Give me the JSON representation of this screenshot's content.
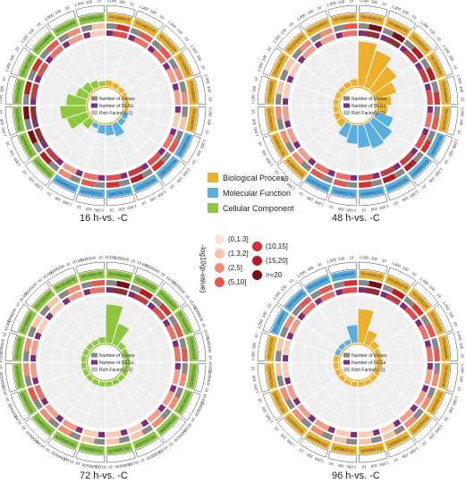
{
  "colors": {
    "biological_process": "#eeb02b",
    "molecular_function": "#5aaee0",
    "cellular_component": "#8ec63f",
    "ring_bg": "#efefef",
    "genes_bar": "#888888",
    "degs_bar": "#7a2e7d",
    "rich_bar": "#bdbdbd"
  },
  "legend": {
    "categories": [
      {
        "label": "Biological Process",
        "color": "#eeb02b"
      },
      {
        "label": "Molecular Function",
        "color": "#5aaee0"
      },
      {
        "label": "Cellular Component",
        "color": "#8ec63f"
      }
    ],
    "pvalue_title": "-log10(p-value)",
    "pvalue_bins": [
      {
        "label": "(0,1.3]",
        "color": "#fbe3d8"
      },
      {
        "label": "(1.3,2]",
        "color": "#f8c3ab"
      },
      {
        "label": "(2,5]",
        "color": "#f28b75"
      },
      {
        "label": "(5,10]",
        "color": "#e8574d"
      },
      {
        "label": "(10,15]",
        "color": "#d9302e"
      },
      {
        "label": "(15,20]",
        "color": "#b51c22"
      },
      {
        "label": ">=20",
        "color": "#7a0c12"
      }
    ]
  },
  "chart_data": [
    {
      "type": "circular-bar",
      "title": "16 h-vs. -C",
      "inner_legend": [
        "Number of Genes",
        "Number of DEGs",
        "Rich Factor(0~1)"
      ],
      "outer_tick_labels": [
        "1,000",
        "100",
        "10"
      ],
      "terms": [
        "GO:0006810",
        "GO:0051179",
        "GO:0051234",
        "GO:0006811",
        "GO:0006812",
        "GO:0030001",
        "GO:0005215",
        "GO:0022857",
        "GO:0015075",
        "GO:0022891",
        "GO:0015318",
        "GO:0008324",
        "GO:0016020",
        "GO:0044425",
        "GO:0031224",
        "GO:0016021",
        "GO:0071944",
        "GO:0005886",
        "GO:0044459",
        "GO:0005576"
      ],
      "category": [
        "BP",
        "BP",
        "BP",
        "BP",
        "BP",
        "BP",
        "MF",
        "MF",
        "MF",
        "MF",
        "MF",
        "MF",
        "CC",
        "CC",
        "CC",
        "CC",
        "CC",
        "CC",
        "CC",
        "CC"
      ],
      "rich_factor": [
        0.12,
        0.1,
        0.09,
        0.08,
        0.08,
        0.07,
        0.1,
        0.12,
        0.28,
        0.22,
        0.18,
        0.1,
        0.2,
        0.45,
        0.55,
        0.42,
        0.25,
        0.2,
        0.15,
        0.1
      ],
      "pvalue_bin": [
        4,
        3,
        3,
        2,
        2,
        1,
        3,
        4,
        5,
        4,
        3,
        2,
        5,
        6,
        6,
        5,
        4,
        3,
        2,
        1
      ]
    },
    {
      "type": "circular-bar",
      "title": "48 h-vs. -C",
      "inner_legend": [
        "Number of Genes",
        "Number of DEGs",
        "Rich Factor(0~1)"
      ],
      "outer_tick_labels": [
        "1,000",
        "100",
        "10"
      ],
      "terms": [
        "GO:0008152",
        "GO:0044710",
        "GO:0055114",
        "GO:0006091",
        "GO:0009056",
        "GO:0044248",
        "GO:0016491",
        "GO:0003824",
        "GO:0016614",
        "GO:0016616",
        "GO:0004022",
        "GO:0016829",
        "GO:0046914",
        "GO:0005975",
        "GO:0019752",
        "GO:0006082",
        "GO:0044281",
        "GO:0043436",
        "GO:0006520",
        "GO:0009058"
      ],
      "category": [
        "BP",
        "BP",
        "BP",
        "BP",
        "BP",
        "BP",
        "MF",
        "MF",
        "MF",
        "MF",
        "MF",
        "MF",
        "BP",
        "BP",
        "BP",
        "BP",
        "BP",
        "BP",
        "BP",
        "BP"
      ],
      "rich_factor": [
        0.95,
        0.82,
        0.62,
        0.45,
        0.3,
        0.22,
        0.38,
        0.5,
        0.55,
        0.48,
        0.4,
        0.3,
        0.15,
        0.12,
        0.1,
        0.1,
        0.1,
        0.1,
        0.12,
        0.15
      ],
      "pvalue_bin": [
        6,
        6,
        5,
        5,
        4,
        3,
        4,
        5,
        5,
        4,
        3,
        3,
        2,
        2,
        2,
        1,
        1,
        2,
        2,
        3
      ]
    },
    {
      "type": "circular-bar",
      "title": "72 h-vs. -C",
      "inner_legend": [
        "Number of Genes",
        "Number of DEGs",
        "Rich Factor(0~1)"
      ],
      "outer_tick_labels": [
        "10,000",
        "1,000",
        "100",
        "10"
      ],
      "terms": [
        "GO:0044464",
        "GO:0005623",
        "GO:0016020",
        "GO:0044425",
        "GO:0031224",
        "GO:0016021",
        "GO:0071944",
        "GO:0005886",
        "GO:0044459",
        "GO:0005576",
        "GO:0030312",
        "GO:0005618",
        "GO:0044421",
        "GO:0009505",
        "GO:0031225",
        "GO:0046658",
        "GO:0005887",
        "GO:0031226",
        "GO:0048046",
        "GO:0005739"
      ],
      "category": [
        "CC",
        "CC",
        "CC",
        "CC",
        "CC",
        "CC",
        "CC",
        "CC",
        "CC",
        "CC",
        "CC",
        "CC",
        "CC",
        "CC",
        "CC",
        "CC",
        "CC",
        "CC",
        "CC",
        "CC"
      ],
      "rich_factor": [
        0.82,
        0.45,
        0.12,
        0.1,
        0.1,
        0.1,
        0.1,
        0.1,
        0.1,
        0.1,
        0.1,
        0.1,
        0.1,
        0.1,
        0.1,
        0.1,
        0.1,
        0.1,
        0.1,
        0.12
      ],
      "pvalue_bin": [
        6,
        5,
        4,
        3,
        3,
        2,
        2,
        2,
        1,
        1,
        1,
        2,
        2,
        3,
        2,
        2,
        1,
        1,
        2,
        3
      ]
    },
    {
      "type": "circular-bar",
      "title": "96 h-vs. -C",
      "inner_legend": [
        "Number of Genes",
        "Number of DEGs",
        "Rich Factor(0~1)"
      ],
      "outer_tick_labels": [
        "1,000",
        "100",
        "10"
      ],
      "terms": [
        "GO:0008152",
        "GO:0044710",
        "GO:0055114",
        "GO:0006091",
        "GO:0009056",
        "GO:0044248",
        "GO:0044281",
        "GO:0019752",
        "GO:0006082",
        "GO:0043436",
        "GO:0006520",
        "GO:0009058",
        "GO:0005975",
        "GO:0016829",
        "GO:0044237",
        "GO:0071704",
        "GO:0003824",
        "GO:0016491",
        "GO:0016614",
        "GO:0004022"
      ],
      "category": [
        "BP",
        "BP",
        "BP",
        "BP",
        "BP",
        "BP",
        "BP",
        "BP",
        "BP",
        "BP",
        "BP",
        "BP",
        "BP",
        "BP",
        "BP",
        "BP",
        "MF",
        "MF",
        "MF",
        "MF"
      ],
      "rich_factor": [
        0.72,
        0.3,
        0.15,
        0.1,
        0.1,
        0.1,
        0.1,
        0.1,
        0.1,
        0.1,
        0.1,
        0.1,
        0.1,
        0.1,
        0.1,
        0.1,
        0.1,
        0.1,
        0.1,
        0.38
      ],
      "pvalue_bin": [
        6,
        5,
        4,
        3,
        3,
        2,
        2,
        2,
        1,
        1,
        1,
        2,
        2,
        2,
        1,
        1,
        2,
        3,
        3,
        4
      ]
    }
  ]
}
